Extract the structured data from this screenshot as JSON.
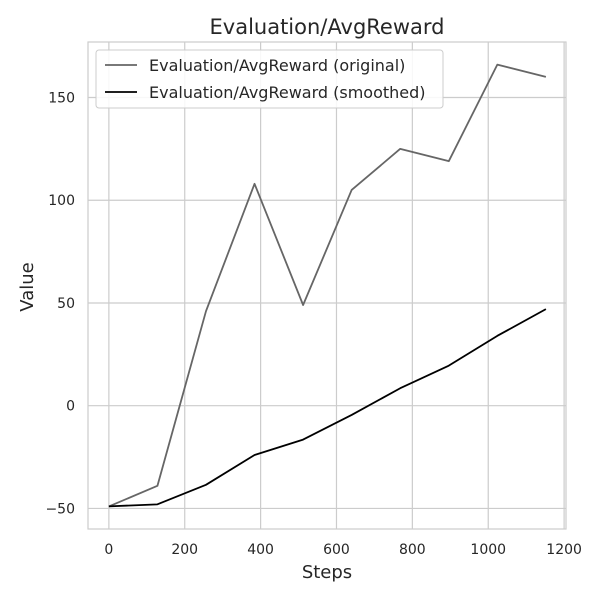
{
  "chart_data": {
    "type": "line",
    "title": "Evaluation/AvgReward",
    "xlabel": "Steps",
    "ylabel": "Value",
    "xlim": [
      -55,
      1205
    ],
    "ylim": [
      -60,
      177
    ],
    "xticks": [
      0,
      200,
      400,
      600,
      800,
      1000,
      1200
    ],
    "yticks": [
      -50,
      0,
      50,
      100,
      150
    ],
    "xtick_labels": [
      "0",
      "200",
      "400",
      "600",
      "800",
      "1000",
      "1200"
    ],
    "ytick_labels": [
      "−50",
      "0",
      "50",
      "100",
      "150"
    ],
    "grid": true,
    "legend_position": "top-left",
    "x": [
      0,
      128,
      256,
      384,
      512,
      640,
      768,
      896,
      1024,
      1152
    ],
    "series": [
      {
        "name": "Evaluation/AvgReward (original)",
        "color": "#666666",
        "values": [
          -49,
          -39,
          46,
          108,
          49,
          105,
          125,
          119,
          166,
          160
        ]
      },
      {
        "name": "Evaluation/AvgReward (smoothed)",
        "color": "#000000",
        "values": [
          -49,
          -48,
          -38.5,
          -24,
          -16.5,
          -4.5,
          8.5,
          19.5,
          34,
          47
        ]
      }
    ]
  }
}
